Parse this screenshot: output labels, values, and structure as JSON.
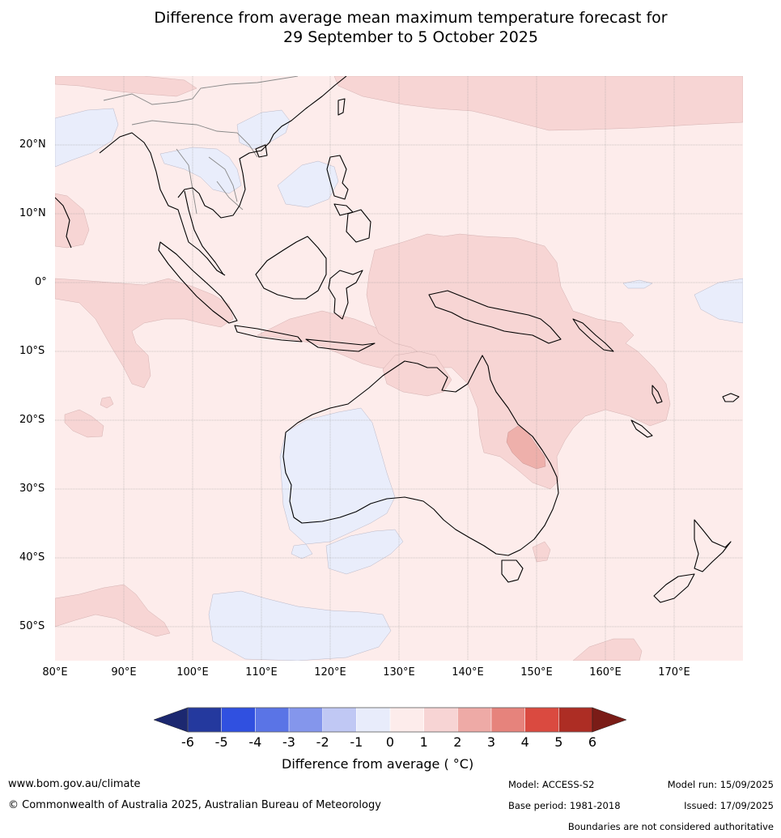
{
  "title": {
    "line1": "Difference from average mean maximum temperature forecast for",
    "line2": "29 September to 5 October 2025"
  },
  "axes": {
    "lat_labels": [
      "20°N",
      "10°N",
      "0°",
      "10°S",
      "20°S",
      "30°S",
      "40°S",
      "50°S"
    ],
    "lon_labels": [
      "80°E",
      "90°E",
      "100°E",
      "110°E",
      "120°E",
      "130°E",
      "140°E",
      "150°E",
      "160°E",
      "170°E"
    ]
  },
  "colorbar": {
    "labels": [
      "-6",
      "-5",
      "-4",
      "-3",
      "-2",
      "-1",
      "0",
      "1",
      "2",
      "3",
      "4",
      "5",
      "6"
    ],
    "colors": [
      "#24399e",
      "#3050e0",
      "#5a74e6",
      "#8496ec",
      "#c0c8f4",
      "#e8ecfb",
      "#fdeceb",
      "#f7d4d4",
      "#eeaaa6",
      "#e6837c",
      "#da4a40",
      "#ad2d24"
    ],
    "end_low_color": "#1c2870",
    "end_high_color": "#7a1c17",
    "title": "Difference from average ( °C)"
  },
  "map_colors": {
    "warm_0_1": "#fdeceb",
    "warm_1_2": "#f7d5d4",
    "warm_2_3": "#eeb0ab",
    "cool_0_1": "#e9edfb",
    "coast": "#000000",
    "border": "#888888",
    "grid": "#999999"
  },
  "footer": {
    "website": "www.bom.gov.au/climate",
    "copyright": "© Commonwealth of Australia 2025, Australian Bureau of Meteorology",
    "model": "Model: ACCESS-S2",
    "base_period": "Base period: 1981-2018",
    "model_run": "Model run: 15/09/2025",
    "issued": "Issued: 17/09/2025",
    "disclaimer": "Boundaries are not considered authoritative"
  }
}
